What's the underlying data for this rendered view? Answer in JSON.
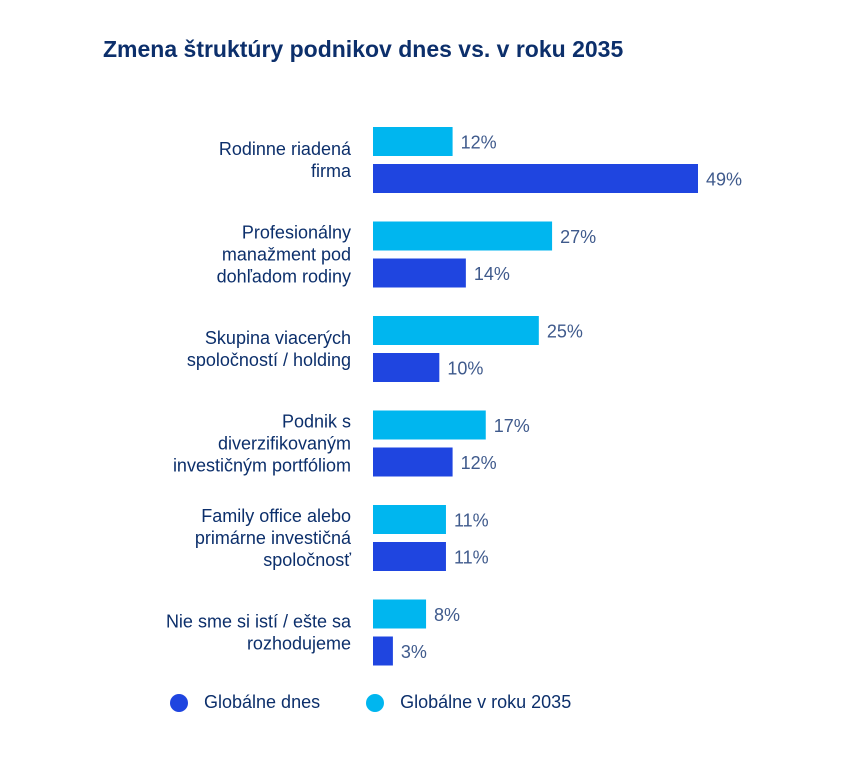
{
  "chart_data": {
    "type": "bar",
    "orientation": "horizontal",
    "title": "Zmena štruktúry podnikov dnes vs. v roku 2035",
    "categories": [
      [
        "Rodinne riadená",
        "firma"
      ],
      [
        "Profesionálny",
        "manažment pod",
        "dohľadom rodiny"
      ],
      [
        "Skupina viacerých",
        "spoločností / holding"
      ],
      [
        "Podnik s",
        "diverzifikovaným",
        "investičným portfóliom"
      ],
      [
        "Family office alebo",
        "primárne investičná",
        "spoločnosť"
      ],
      [
        "Nie sme si istí / ešte sa",
        "rozhodujeme"
      ]
    ],
    "series": [
      {
        "name": "Globálne v roku 2035",
        "color": "#00b6ef",
        "values": [
          12,
          27,
          25,
          17,
          11,
          8
        ],
        "labels": [
          "12%",
          "27%",
          "25%",
          "17%",
          "11%",
          "8%"
        ]
      },
      {
        "name": "Globálne dnes",
        "color": "#1f45e0",
        "values": [
          49,
          14,
          10,
          12,
          11,
          3
        ],
        "labels": [
          "49%",
          "14%",
          "10%",
          "12%",
          "11%",
          "3%"
        ]
      }
    ],
    "unit": "%",
    "xlim": [
      0,
      50
    ],
    "grid": false,
    "legend_position": "bottom"
  },
  "legend": [
    {
      "label": "Globálne dnes",
      "color": "#1f45e0"
    },
    {
      "label": "Globálne v roku 2035",
      "color": "#00b6ef"
    }
  ]
}
